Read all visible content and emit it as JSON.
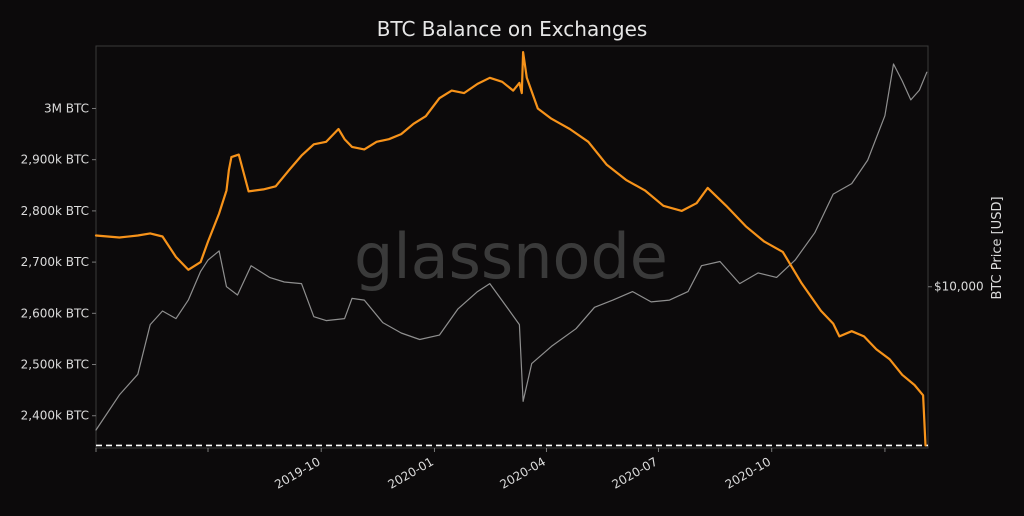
{
  "chart_data": {
    "type": "line",
    "title": "BTC Balance on Exchanges",
    "xlabel": "",
    "ylabel_left": "",
    "ylabel_right": "BTC Price [USD]",
    "watermark": "glassnode",
    "x_ticks": [
      "2019-04",
      "2019-07",
      "2019-10",
      "2020-01",
      "2020-04",
      "2020-07",
      "2020-10",
      "2021-01"
    ],
    "x_tick_labels": [
      "",
      "",
      "2019-10",
      "2020-01",
      "2020-04",
      "2020-07",
      "2020-10",
      ""
    ],
    "xlim": [
      "2019-04-01",
      "2021-02-05"
    ],
    "y_left_ticks": [
      2400,
      2500,
      2600,
      2700,
      2800,
      2900,
      3000
    ],
    "y_left_tick_labels": [
      "2,400k BTC",
      "2,500k BTC",
      "2,600k BTC",
      "2,700k BTC",
      "2,800k BTC",
      "2,900k BTC",
      "3M BTC"
    ],
    "y_left_top_label": "",
    "ylim_left": [
      2337,
      3122
    ],
    "y_right_tick_labels": [
      "$10,000"
    ],
    "y_right_scale": "log",
    "grid": false,
    "legend": "none",
    "reference_line": {
      "style": "dashed",
      "value": 2342,
      "color": "#ffffff"
    },
    "colors": {
      "balance": "#f7931a",
      "price": "#8f8f8f",
      "background": "#0c0a0b",
      "text": "#dcdcdc"
    },
    "series": [
      {
        "key": "balance",
        "axis": "left",
        "x": [
          "2019-04-01",
          "2019-04-20",
          "2019-05-05",
          "2019-05-15",
          "2019-05-25",
          "2019-06-05",
          "2019-06-15",
          "2019-06-25",
          "2019-07-01",
          "2019-07-10",
          "2019-07-16",
          "2019-07-18",
          "2019-07-20",
          "2019-07-26",
          "2019-08-03",
          "2019-08-15",
          "2019-08-25",
          "2019-09-05",
          "2019-09-15",
          "2019-09-25",
          "2019-10-05",
          "2019-10-15",
          "2019-10-20",
          "2019-10-26",
          "2019-11-05",
          "2019-11-15",
          "2019-11-25",
          "2019-12-05",
          "2019-12-15",
          "2019-12-25",
          "2020-01-05",
          "2020-01-15",
          "2020-01-25",
          "2020-02-05",
          "2020-02-15",
          "2020-02-25",
          "2020-03-05",
          "2020-03-10",
          "2020-03-12",
          "2020-03-13",
          "2020-03-16",
          "2020-03-25",
          "2020-04-05",
          "2020-04-20",
          "2020-05-05",
          "2020-05-20",
          "2020-06-05",
          "2020-06-20",
          "2020-07-05",
          "2020-07-20",
          "2020-08-01",
          "2020-08-10",
          "2020-08-25",
          "2020-09-10",
          "2020-09-25",
          "2020-10-10",
          "2020-10-25",
          "2020-11-10",
          "2020-11-20",
          "2020-11-25",
          "2020-12-05",
          "2020-12-15",
          "2020-12-25",
          "2021-01-05",
          "2021-01-15",
          "2021-01-25",
          "2021-02-01",
          "2021-02-03"
        ],
        "values": [
          2752,
          2748,
          2752,
          2756,
          2750,
          2710,
          2685,
          2700,
          2740,
          2795,
          2840,
          2880,
          2905,
          2910,
          2838,
          2842,
          2848,
          2880,
          2908,
          2930,
          2935,
          2960,
          2940,
          2925,
          2920,
          2935,
          2940,
          2950,
          2970,
          2985,
          3020,
          3035,
          3030,
          3048,
          3060,
          3052,
          3035,
          3050,
          3030,
          3110,
          3060,
          3000,
          2980,
          2960,
          2935,
          2890,
          2860,
          2840,
          2810,
          2800,
          2815,
          2845,
          2810,
          2770,
          2740,
          2720,
          2660,
          2605,
          2580,
          2555,
          2565,
          2555,
          2530,
          2510,
          2480,
          2460,
          2440,
          2342
        ]
      },
      {
        "key": "price",
        "axis": "right",
        "x": [
          "2019-04-01",
          "2019-04-20",
          "2019-05-05",
          "2019-05-15",
          "2019-05-25",
          "2019-06-05",
          "2019-06-15",
          "2019-06-25",
          "2019-07-01",
          "2019-07-10",
          "2019-07-16",
          "2019-07-25",
          "2019-08-05",
          "2019-08-20",
          "2019-09-01",
          "2019-09-15",
          "2019-09-25",
          "2019-10-05",
          "2019-10-20",
          "2019-10-26",
          "2019-11-05",
          "2019-11-20",
          "2019-12-05",
          "2019-12-20",
          "2020-01-05",
          "2020-01-20",
          "2020-02-05",
          "2020-02-15",
          "2020-03-01",
          "2020-03-10",
          "2020-03-13",
          "2020-03-20",
          "2020-04-05",
          "2020-04-25",
          "2020-05-10",
          "2020-05-25",
          "2020-06-10",
          "2020-06-25",
          "2020-07-10",
          "2020-07-25",
          "2020-08-05",
          "2020-08-20",
          "2020-09-05",
          "2020-09-20",
          "2020-10-05",
          "2020-10-20",
          "2020-11-05",
          "2020-11-20",
          "2020-12-05",
          "2020-12-18",
          "2021-01-01",
          "2021-01-08",
          "2021-01-15",
          "2021-01-22",
          "2021-01-29",
          "2021-02-04"
        ],
        "values": [
          4100,
          5100,
          5800,
          7900,
          8600,
          8200,
          9200,
          11000,
          11800,
          12500,
          10000,
          9500,
          11400,
          10600,
          10300,
          10200,
          8300,
          8100,
          8200,
          9300,
          9200,
          8000,
          7500,
          7200,
          7400,
          8700,
          9700,
          10200,
          8700,
          7900,
          4900,
          6200,
          6900,
          7700,
          8800,
          9200,
          9700,
          9100,
          9200,
          9700,
          11400,
          11700,
          10200,
          10900,
          10600,
          11800,
          14000,
          17800,
          19000,
          22000,
          29000,
          40000,
          36000,
          32000,
          34000,
          38000
        ]
      }
    ]
  }
}
